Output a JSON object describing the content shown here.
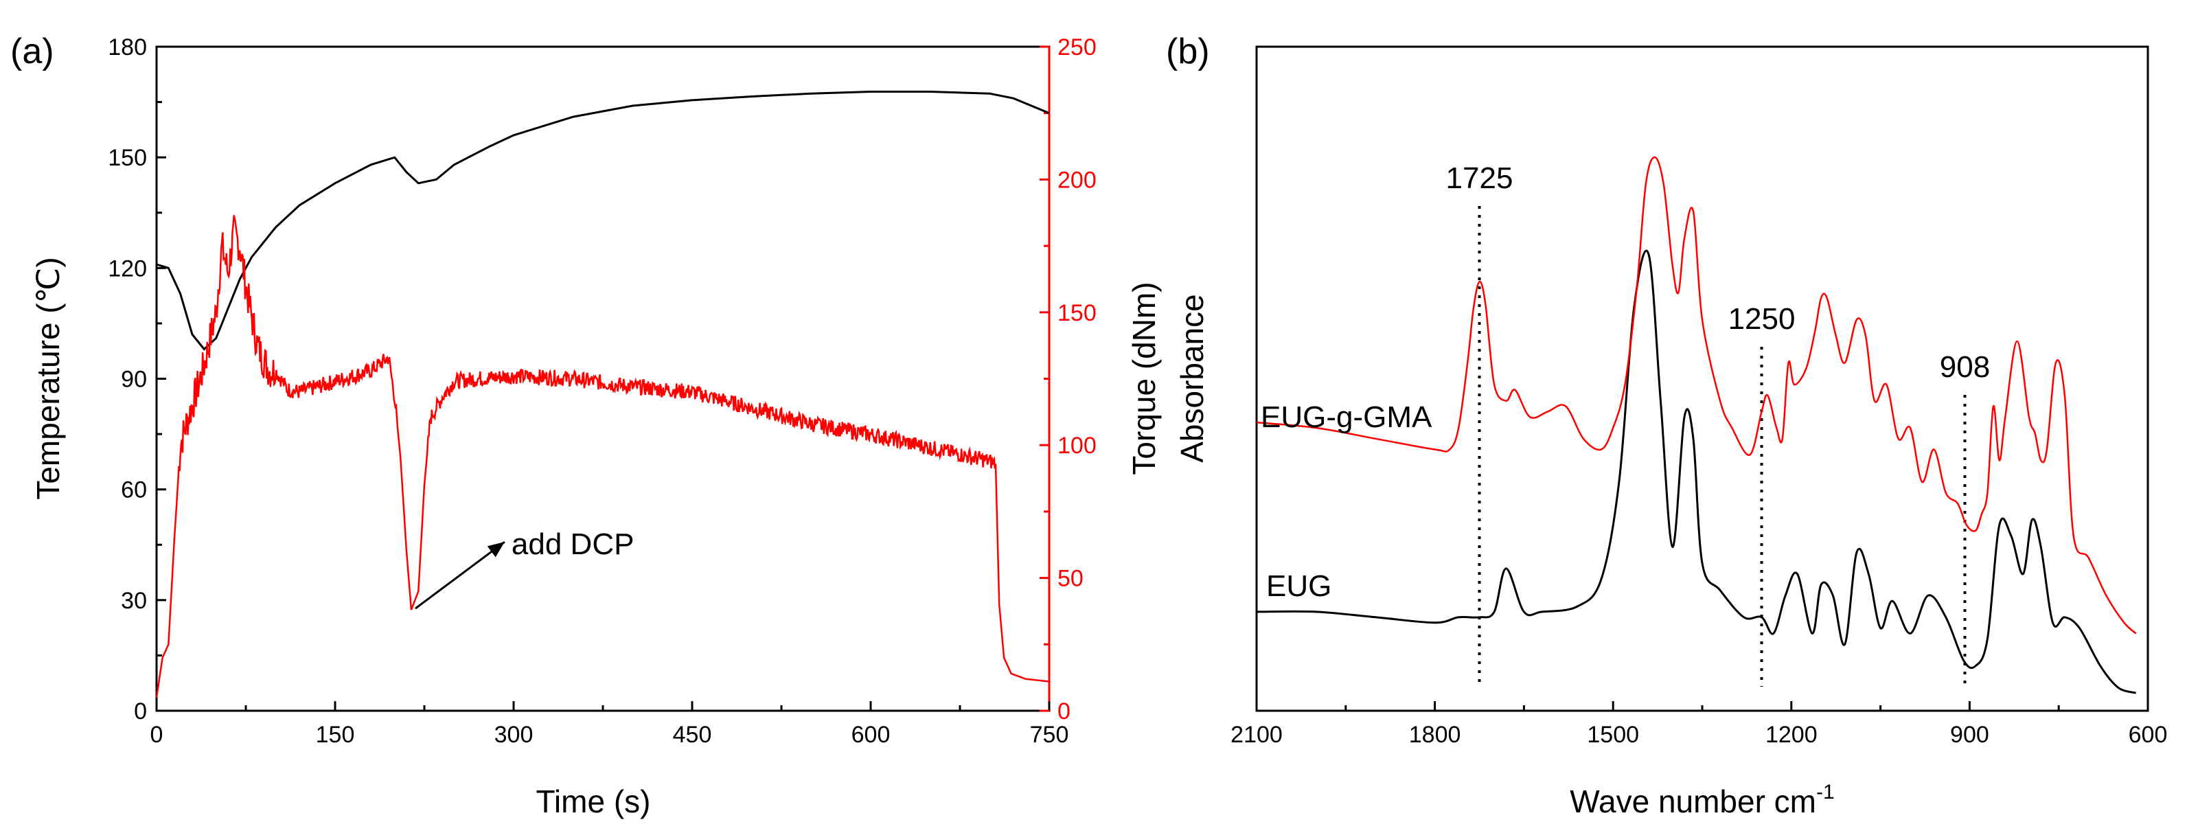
{
  "chart_data": [
    {
      "panel_label": "(a)",
      "type": "line",
      "xlabel": "Time (s)",
      "ylabel": "Temperature (℃)",
      "y2label": "Torque (dNm)",
      "xlim": [
        0,
        750
      ],
      "ylim": [
        0,
        180
      ],
      "y2lim": [
        0,
        250
      ],
      "xticks": [
        "0",
        "150",
        "300",
        "450",
        "600",
        "750"
      ],
      "yticks": [
        "0",
        "30",
        "60",
        "90",
        "120",
        "150",
        "180"
      ],
      "y2ticks": [
        "0",
        "50",
        "100",
        "150",
        "200",
        "250"
      ],
      "series": [
        {
          "name": "Temperature",
          "axis": "left",
          "color": "#000000",
          "x": [
            0,
            10,
            20,
            30,
            40,
            50,
            60,
            70,
            80,
            100,
            120,
            150,
            180,
            200,
            210,
            220,
            235,
            250,
            280,
            300,
            350,
            400,
            450,
            500,
            550,
            600,
            650,
            700,
            720,
            750
          ],
          "y": [
            121,
            120,
            113,
            102,
            98,
            101,
            109,
            117,
            123,
            131,
            137,
            143,
            148,
            150,
            146,
            143,
            144,
            148,
            153,
            156,
            161,
            164,
            165.5,
            166.5,
            167.3,
            167.8,
            167.8,
            167.3,
            166,
            162
          ]
        },
        {
          "name": "Torque",
          "axis": "right",
          "color": "#ff0000",
          "x": [
            0,
            5,
            10,
            15,
            20,
            25,
            30,
            40,
            50,
            55,
            60,
            65,
            70,
            75,
            80,
            85,
            90,
            95,
            100,
            110,
            120,
            150,
            180,
            195,
            200,
            205,
            210,
            214,
            220,
            225,
            230,
            240,
            250,
            270,
            300,
            350,
            400,
            450,
            500,
            550,
            600,
            650,
            700,
            705,
            708,
            712,
            718,
            730,
            750
          ],
          "y": [
            5,
            20,
            25,
            65,
            100,
            108,
            115,
            130,
            150,
            175,
            165,
            180,
            175,
            160,
            148,
            137,
            132,
            128,
            128,
            121,
            120,
            124,
            128,
            133,
            118,
            95,
            60,
            38,
            45,
            85,
            110,
            118,
            124,
            125,
            126,
            125,
            122,
            120,
            114,
            108,
            104,
            99,
            94,
            93,
            40,
            20,
            14,
            12,
            11
          ]
        }
      ],
      "annotations": [
        {
          "text": "add DCP",
          "x": 214,
          "y2": 38
        }
      ]
    },
    {
      "panel_label": "(b)",
      "type": "line",
      "xlabel": "Wave number cm",
      "xlabel_superscript": "-1",
      "ylabel": "Absorbance",
      "xlim": [
        2100,
        600
      ],
      "x_reversed": true,
      "ylim": [
        0,
        1
      ],
      "xticks": [
        "2100",
        "1800",
        "1500",
        "1200",
        "900",
        "600"
      ],
      "y_ticklabels_shown": false,
      "series": [
        {
          "name": "EUG",
          "color": "#000000",
          "x": [
            2100,
            2000,
            1900,
            1800,
            1760,
            1725,
            1700,
            1680,
            1650,
            1620,
            1560,
            1520,
            1490,
            1465,
            1440,
            1420,
            1400,
            1380,
            1365,
            1350,
            1320,
            1280,
            1250,
            1230,
            1210,
            1190,
            1165,
            1150,
            1130,
            1110,
            1090,
            1070,
            1050,
            1030,
            1000,
            970,
            940,
            910,
            890,
            870,
            850,
            830,
            810,
            795,
            780,
            760,
            740,
            715,
            680,
            650,
            620
          ],
          "y": [
            0.16,
            0.16,
            0.15,
            0.14,
            0.15,
            0.15,
            0.16,
            0.24,
            0.16,
            0.16,
            0.17,
            0.22,
            0.4,
            0.72,
            0.82,
            0.55,
            0.28,
            0.52,
            0.48,
            0.25,
            0.2,
            0.15,
            0.15,
            0.12,
            0.19,
            0.23,
            0.12,
            0.21,
            0.19,
            0.1,
            0.27,
            0.23,
            0.13,
            0.18,
            0.12,
            0.19,
            0.15,
            0.07,
            0.06,
            0.11,
            0.32,
            0.3,
            0.23,
            0.33,
            0.28,
            0.14,
            0.15,
            0.13,
            0.06,
            0.02,
            0.01
          ]
        },
        {
          "name": "EUG-g-GMA",
          "color": "#ff0000",
          "x": [
            2100,
            2000,
            1900,
            1800,
            1775,
            1760,
            1745,
            1735,
            1725,
            1715,
            1700,
            1680,
            1665,
            1640,
            1610,
            1580,
            1550,
            1520,
            1500,
            1480,
            1460,
            1445,
            1430,
            1415,
            1400,
            1390,
            1380,
            1365,
            1350,
            1320,
            1300,
            1270,
            1250,
            1240,
            1225,
            1215,
            1205,
            1195,
            1175,
            1160,
            1150,
            1140,
            1125,
            1110,
            1090,
            1075,
            1060,
            1040,
            1020,
            1000,
            980,
            960,
            940,
            920,
            905,
            890,
            880,
            870,
            860,
            850,
            840,
            820,
            800,
            790,
            780,
            770,
            755,
            740,
            725,
            700,
            670,
            640,
            620
          ],
          "y": [
            0.51,
            0.5,
            0.48,
            0.46,
            0.46,
            0.5,
            0.62,
            0.72,
            0.77,
            0.73,
            0.58,
            0.55,
            0.57,
            0.52,
            0.53,
            0.54,
            0.48,
            0.46,
            0.5,
            0.58,
            0.76,
            0.95,
            1.0,
            0.95,
            0.8,
            0.75,
            0.85,
            0.9,
            0.7,
            0.55,
            0.5,
            0.45,
            0.53,
            0.56,
            0.5,
            0.48,
            0.62,
            0.58,
            0.61,
            0.68,
            0.74,
            0.74,
            0.67,
            0.62,
            0.7,
            0.67,
            0.55,
            0.58,
            0.48,
            0.5,
            0.4,
            0.46,
            0.38,
            0.36,
            0.32,
            0.31,
            0.34,
            0.38,
            0.54,
            0.44,
            0.52,
            0.66,
            0.52,
            0.49,
            0.44,
            0.46,
            0.62,
            0.56,
            0.3,
            0.26,
            0.19,
            0.14,
            0.12
          ]
        }
      ],
      "annotations": [
        {
          "text": "1725",
          "x": 1725
        },
        {
          "text": "1250",
          "x": 1250
        },
        {
          "text": "908",
          "x": 908
        }
      ]
    }
  ]
}
